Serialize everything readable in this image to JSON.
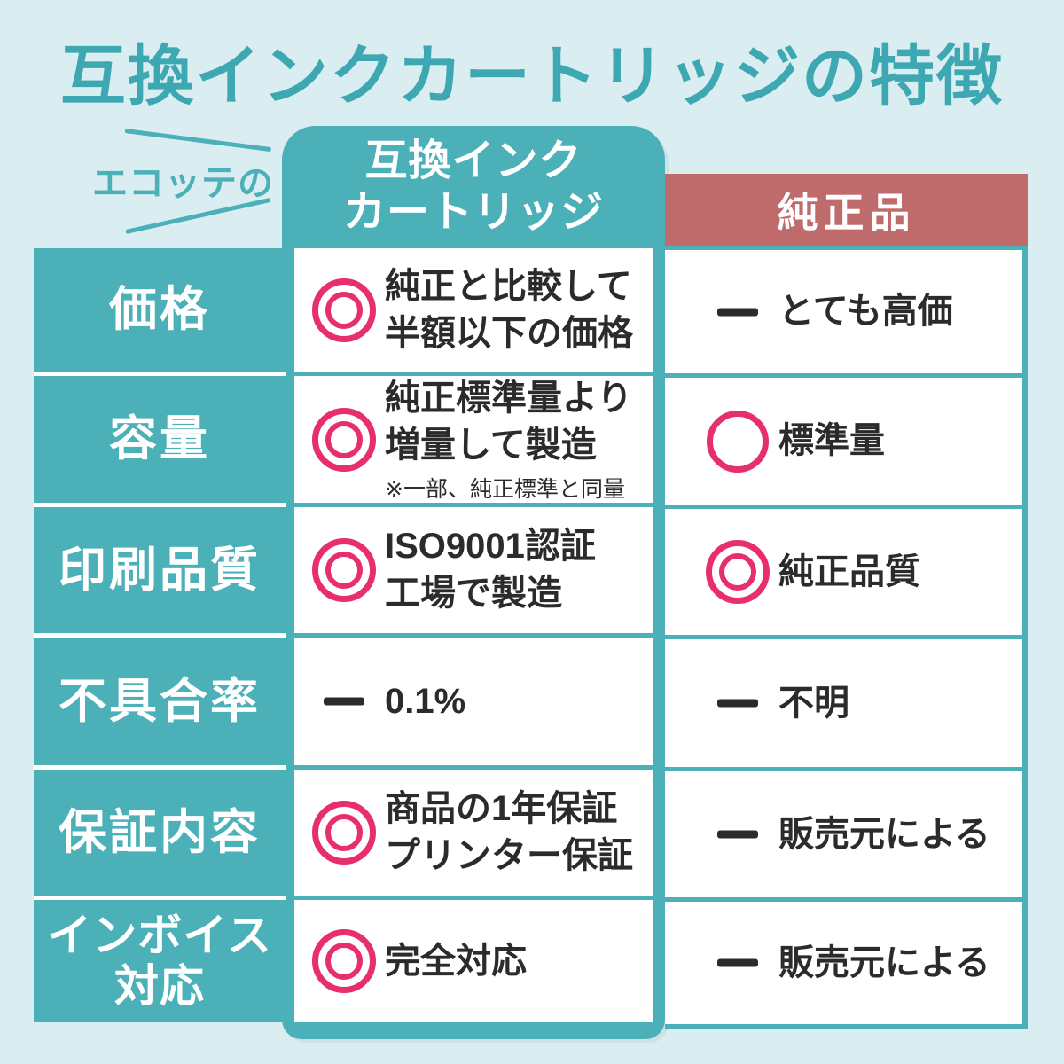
{
  "title": "互換インクカートリッジの特徴",
  "brand_label": "エコッテの",
  "columns": {
    "compatible_header": "互換インク\nカートリッジ",
    "genuine_header": "純正品"
  },
  "colors": {
    "teal": "#4bb0b8",
    "title_teal": "#3ea8b2",
    "genuine_red": "#c06b6b",
    "symbol_pink": "#e72f6d",
    "background": "#daeef2",
    "text_dark": "#2b2b2b"
  },
  "rows": [
    {
      "label": "価格",
      "compat": {
        "symbol": "double-circle",
        "text": "純正と比較して\n半額以下の価格"
      },
      "genuine": {
        "symbol": "dash",
        "text": "とても高価"
      }
    },
    {
      "label": "容量",
      "compat": {
        "symbol": "double-circle",
        "text": "純正標準量より\n増量して製造",
        "note": "※一部、純正標準と同量"
      },
      "genuine": {
        "symbol": "circle",
        "text": "標準量"
      }
    },
    {
      "label": "印刷品質",
      "compat": {
        "symbol": "double-circle",
        "text": "ISO9001認証\n工場で製造"
      },
      "genuine": {
        "symbol": "double-circle",
        "text": "純正品質"
      }
    },
    {
      "label": "不具合率",
      "compat": {
        "symbol": "dash",
        "text": "0.1%"
      },
      "genuine": {
        "symbol": "dash",
        "text": "不明"
      }
    },
    {
      "label": "保証内容",
      "compat": {
        "symbol": "double-circle",
        "text": "商品の1年保証\nプリンター保証"
      },
      "genuine": {
        "symbol": "dash",
        "text": "販売元による"
      }
    },
    {
      "label": "インボイス\n対応",
      "compat": {
        "symbol": "double-circle",
        "text": "完全対応"
      },
      "genuine": {
        "symbol": "dash",
        "text": "販売元による"
      }
    }
  ]
}
